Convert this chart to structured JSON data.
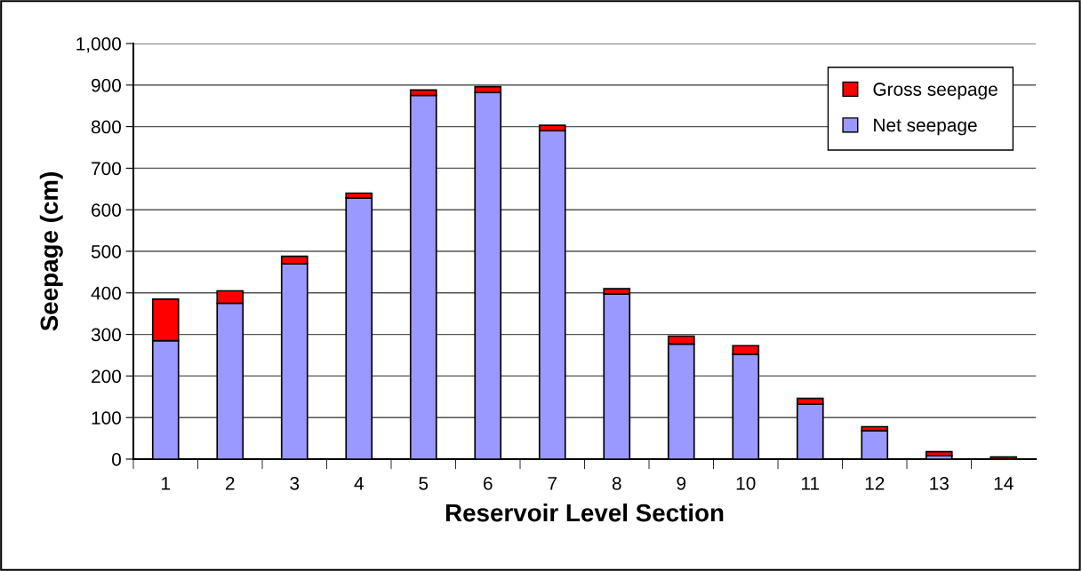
{
  "chart_data": {
    "type": "bar",
    "stacked": true,
    "xlabel": "Reservoir Level Section",
    "ylabel": "Seepage (cm)",
    "categories": [
      "1",
      "2",
      "3",
      "4",
      "5",
      "6",
      "7",
      "8",
      "9",
      "10",
      "11",
      "12",
      "13",
      "14"
    ],
    "series": [
      {
        "name": "Net seepage",
        "color": "#9999ff",
        "values": [
          285,
          375,
          470,
          628,
          875,
          882,
          790,
          397,
          277,
          252,
          132,
          68,
          8,
          null
        ]
      },
      {
        "name": "Gross seepage",
        "color": "#ff0000",
        "values": [
          100,
          30,
          18,
          12,
          13,
          14,
          13,
          13,
          19,
          21,
          14,
          10,
          10,
          5
        ]
      }
    ],
    "ylim": [
      0,
      1000
    ],
    "yticks": [
      0,
      100,
      200,
      300,
      400,
      500,
      600,
      700,
      800,
      900,
      {
        "value": 1000,
        "label": "1,000"
      }
    ],
    "grid": "y",
    "legend": "top right"
  }
}
